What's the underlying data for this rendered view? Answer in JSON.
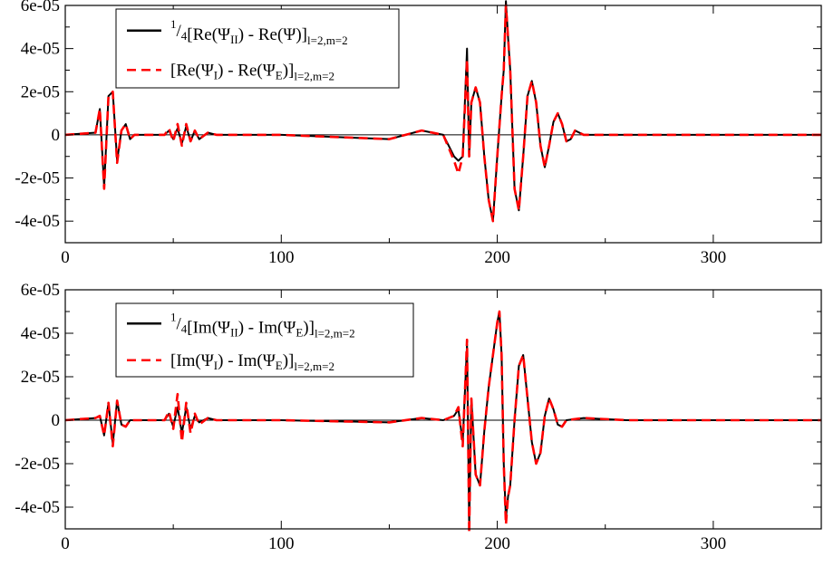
{
  "chart_data": [
    {
      "type": "line",
      "xlim": [
        0,
        350
      ],
      "ylim": [
        -5e-05,
        6e-05
      ],
      "x_ticks": [
        0,
        100,
        200,
        300
      ],
      "x_tick_labels": [
        "0",
        "100",
        "200",
        "300"
      ],
      "y_ticks": [
        -4e-05,
        -2e-05,
        0,
        2e-05,
        4e-05,
        6e-05
      ],
      "y_tick_labels": [
        "-4e-05",
        "-2e-05",
        "0",
        "2e-05",
        "4e-05",
        "6e-05"
      ],
      "grid": false,
      "legend_position": "top-left",
      "legend": [
        {
          "pre": "1",
          "mid": "/",
          "num": "4",
          "main": "[Re(Ψ",
          "sub1": "II",
          "main2": ") - Re(Ψ)]",
          "sub2": "l=2,m=2"
        },
        {
          "pre": "",
          "mid": "",
          "num": "",
          "main": "[Re(Ψ",
          "sub1": "I",
          "main2": ") - Re(Ψ",
          "sub_e": "E",
          "main3": ")]",
          "sub2": "l=2,m=2"
        }
      ],
      "series": [
        {
          "color": "#000000",
          "style": "solid",
          "x": [
            0,
            14,
            16,
            18,
            20,
            22,
            24,
            26,
            28,
            30,
            32,
            46,
            48,
            50,
            52,
            54,
            56,
            58,
            60,
            62,
            66,
            70,
            74,
            100,
            150,
            165,
            175,
            180,
            182,
            184,
            186,
            187,
            188,
            190,
            192,
            194,
            196,
            198,
            200,
            202,
            203,
            204,
            205,
            206,
            208,
            210,
            212,
            214,
            216,
            218,
            220,
            222,
            224,
            226,
            228,
            230,
            232,
            234,
            236,
            238,
            240,
            250,
            260,
            350
          ],
          "y": [
            0,
            1e-06,
            1.2e-05,
            -2.4e-05,
            1.8e-05,
            2e-05,
            -1.2e-05,
            2e-06,
            5e-06,
            -2e-06,
            0,
            0,
            2e-06,
            -2e-06,
            3e-06,
            -4e-06,
            4e-06,
            -3e-06,
            2e-06,
            -2e-06,
            1e-06,
            0,
            0,
            0,
            -2e-06,
            2e-06,
            0,
            -1e-05,
            -1.2e-05,
            -1e-05,
            4e-05,
            -1e-05,
            1.5e-05,
            2.2e-05,
            1.5e-05,
            -1e-05,
            -3e-05,
            -4e-05,
            -1e-05,
            1.8e-05,
            3e-05,
            6.2e-05,
            4.5e-05,
            3e-05,
            -2.5e-05,
            -3.5e-05,
            -1e-05,
            1.8e-05,
            2.5e-05,
            1.5e-05,
            -5e-06,
            -1.5e-05,
            -5e-06,
            6e-06,
            1e-05,
            5e-06,
            -3e-06,
            -2e-06,
            2e-06,
            1e-06,
            0,
            0,
            0,
            0
          ]
        },
        {
          "color": "#ff0000",
          "style": "dashed",
          "x": [
            0,
            14,
            16,
            18,
            20,
            22,
            24,
            26,
            28,
            30,
            32,
            46,
            48,
            50,
            52,
            54,
            56,
            58,
            60,
            62,
            66,
            70,
            74,
            100,
            150,
            165,
            175,
            180,
            182,
            184,
            186,
            187,
            188,
            190,
            192,
            194,
            196,
            198,
            200,
            202,
            203,
            204,
            205,
            206,
            208,
            210,
            212,
            214,
            216,
            218,
            220,
            222,
            224,
            226,
            228,
            230,
            232,
            234,
            236,
            238,
            240,
            250,
            260,
            350
          ],
          "y": [
            0,
            1e-06,
            1.2e-05,
            -2.5e-05,
            1.8e-05,
            2e-05,
            -1.3e-05,
            2e-06,
            5e-06,
            -2e-06,
            0,
            0,
            3e-06,
            -3e-06,
            5e-06,
            -5e-06,
            5e-06,
            -3e-06,
            2e-06,
            -2e-06,
            1e-06,
            0,
            0,
            0,
            -2e-06,
            2e-06,
            0,
            -1.2e-05,
            -1.8e-05,
            -1e-05,
            3.5e-05,
            -1e-05,
            1.5e-05,
            2.2e-05,
            1.5e-05,
            -1e-05,
            -3e-05,
            -4e-05,
            -1e-05,
            1.8e-05,
            3e-05,
            6e-05,
            4.5e-05,
            3e-05,
            -2.5e-05,
            -3.5e-05,
            -1e-05,
            1.8e-05,
            2.5e-05,
            1.5e-05,
            -5e-06,
            -1.5e-05,
            -5e-06,
            6e-06,
            1e-05,
            5e-06,
            -3e-06,
            -2e-06,
            2e-06,
            1e-06,
            0,
            0,
            0,
            0
          ]
        }
      ]
    },
    {
      "type": "line",
      "xlim": [
        0,
        350
      ],
      "ylim": [
        -5e-05,
        6e-05
      ],
      "x_ticks": [
        0,
        100,
        200,
        300
      ],
      "x_tick_labels": [
        "0",
        "100",
        "200",
        "300"
      ],
      "y_ticks": [
        -4e-05,
        -2e-05,
        0,
        2e-05,
        4e-05,
        6e-05
      ],
      "y_tick_labels": [
        "-4e-05",
        "-2e-05",
        "0",
        "2e-05",
        "4e-05",
        "6e-05"
      ],
      "grid": false,
      "legend_position": "top-left",
      "legend": [
        {
          "pre": "1",
          "mid": "/",
          "num": "4",
          "main": "[Im(Ψ",
          "sub1": "II",
          "main2": ") - Im(Ψ",
          "sub_e": "E",
          "main3": ")]",
          "sub2": "l=2,m=2"
        },
        {
          "pre": "",
          "mid": "",
          "num": "",
          "main": "[Im(Ψ",
          "sub1": "I",
          "main2": ") - Im(Ψ",
          "sub_e": "E",
          "main3": ")]",
          "sub2": "l=2,m=2"
        }
      ],
      "series": [
        {
          "color": "#000000",
          "style": "solid",
          "x": [
            0,
            14,
            16,
            18,
            20,
            22,
            24,
            26,
            28,
            30,
            46,
            48,
            50,
            52,
            54,
            56,
            58,
            60,
            62,
            66,
            70,
            74,
            100,
            150,
            165,
            175,
            180,
            182,
            184,
            186,
            187,
            188,
            190,
            192,
            194,
            196,
            198,
            200,
            201,
            202,
            203,
            204,
            205,
            206,
            208,
            210,
            212,
            214,
            216,
            218,
            220,
            222,
            224,
            226,
            228,
            230,
            232,
            240,
            260,
            350
          ],
          "y": [
            0,
            1e-06,
            2e-06,
            -7e-06,
            8e-06,
            -1.1e-05,
            9e-06,
            -2e-06,
            -3e-06,
            0,
            0,
            3e-06,
            -3e-06,
            6e-06,
            -6e-06,
            6e-06,
            -4e-06,
            2e-06,
            -1e-06,
            1e-06,
            0,
            0,
            0,
            -1e-06,
            1e-06,
            0,
            2e-06,
            5e-06,
            -1e-05,
            3.5e-05,
            -5e-05,
            1e-05,
            -2.5e-05,
            -3e-05,
            -5e-06,
            1.5e-05,
            3e-05,
            4.5e-05,
            5e-05,
            3e-05,
            -2e-05,
            -4.5e-05,
            -3.5e-05,
            -3e-05,
            0,
            2.5e-05,
            3e-05,
            1e-05,
            -1e-05,
            -2e-05,
            -1.5e-05,
            2e-06,
            1e-05,
            5e-06,
            -2e-06,
            -3e-06,
            0,
            1e-06,
            0,
            0
          ]
        },
        {
          "color": "#ff0000",
          "style": "dashed",
          "x": [
            0,
            14,
            16,
            18,
            20,
            22,
            24,
            26,
            28,
            30,
            46,
            48,
            50,
            52,
            54,
            56,
            58,
            60,
            62,
            66,
            70,
            74,
            100,
            150,
            165,
            175,
            180,
            182,
            184,
            186,
            187,
            188,
            190,
            192,
            194,
            196,
            198,
            200,
            201,
            202,
            203,
            204,
            205,
            206,
            208,
            210,
            212,
            214,
            216,
            218,
            220,
            222,
            224,
            226,
            228,
            230,
            232,
            240,
            260,
            350
          ],
          "y": [
            0,
            1e-06,
            2e-06,
            -7e-06,
            8e-06,
            -1.2e-05,
            9e-06,
            -2e-06,
            -3e-06,
            0,
            0,
            4e-06,
            -4e-06,
            1.2e-05,
            -1e-05,
            8e-06,
            -6e-06,
            3e-06,
            -2e-06,
            1e-06,
            0,
            0,
            0,
            -1e-06,
            1e-06,
            0,
            2e-06,
            6e-06,
            -1.2e-05,
            3.7e-05,
            -5.2e-05,
            1e-05,
            -2.5e-05,
            -3e-05,
            -5e-06,
            1.5e-05,
            3e-05,
            4.5e-05,
            5e-05,
            3e-05,
            -2e-05,
            -4.8e-05,
            -3.5e-05,
            -3e-05,
            0,
            2.5e-05,
            3e-05,
            1e-05,
            -1e-05,
            -2e-05,
            -1.5e-05,
            2e-06,
            1e-05,
            5e-06,
            -2e-06,
            -3e-06,
            0,
            1e-06,
            0,
            0
          ]
        }
      ]
    }
  ]
}
